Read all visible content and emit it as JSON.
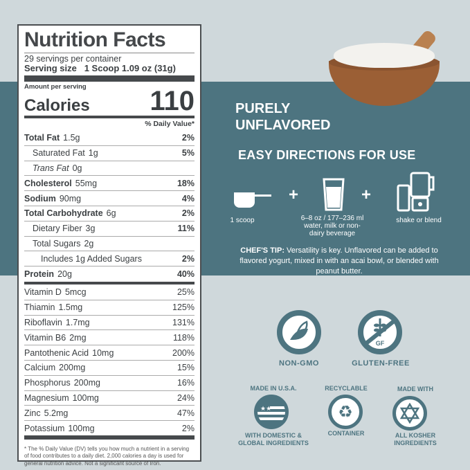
{
  "label": {
    "title": "Nutrition Facts",
    "servings": "29 servings per container",
    "serving_size_label": "Serving size",
    "serving_size_value": "1 Scoop 1.09 oz (31g)",
    "amount_per_serving": "Amount per serving",
    "calories_label": "Calories",
    "calories_value": "110",
    "dv_header": "% Daily Value*",
    "rows": [
      {
        "name": "Total Fat",
        "amount": "1.5g",
        "dv": "2%",
        "bold": true,
        "indent": 0
      },
      {
        "name": "Saturated Fat",
        "amount": "1g",
        "dv": "5%",
        "bold": false,
        "indent": 1
      },
      {
        "name": "Trans Fat",
        "amount": "0g",
        "dv": "",
        "bold": false,
        "indent": 1,
        "italic": true
      },
      {
        "name": "Cholesterol",
        "amount": "55mg",
        "dv": "18%",
        "bold": true,
        "indent": 0
      },
      {
        "name": "Sodium",
        "amount": "90mg",
        "dv": "4%",
        "bold": true,
        "indent": 0
      },
      {
        "name": "Total Carbohydrate",
        "amount": "6g",
        "dv": "2%",
        "bold": true,
        "indent": 0
      },
      {
        "name": "Dietary Fiber",
        "amount": "3g",
        "dv": "11%",
        "bold": false,
        "indent": 1
      },
      {
        "name": "Total Sugars",
        "amount": "2g",
        "dv": "",
        "bold": false,
        "indent": 1
      },
      {
        "name": "Includes 1g Added Sugars",
        "amount": "",
        "dv": "2%",
        "bold": false,
        "indent": 2
      },
      {
        "name": "Protein",
        "amount": "20g",
        "dv": "40%",
        "bold": true,
        "indent": 0
      }
    ],
    "vitamins": [
      {
        "name": "Vitamin D",
        "amount": "5mcg",
        "dv": "25%"
      },
      {
        "name": "Thiamin",
        "amount": "1.5mg",
        "dv": "125%"
      },
      {
        "name": "Riboflavin",
        "amount": "1.7mg",
        "dv": "131%"
      },
      {
        "name": "Vitamin B6",
        "amount": "2mg",
        "dv": "118%"
      },
      {
        "name": "Pantothenic Acid",
        "amount": "10mg",
        "dv": "200%"
      },
      {
        "name": "Calcium",
        "amount": "200mg",
        "dv": "15%"
      },
      {
        "name": "Phosphorus",
        "amount": "200mg",
        "dv": "16%"
      },
      {
        "name": "Magnesium",
        "amount": "100mg",
        "dv": "24%"
      },
      {
        "name": "Zinc",
        "amount": "5.2mg",
        "dv": "47%"
      },
      {
        "name": "Potassium",
        "amount": "100mg",
        "dv": "2%"
      }
    ],
    "footnote": "* The % Daily Value (DV) tells you how much a nutrient in a serving of food contributes to a daily diet. 2,000 calories a day is used for general nutrition advice.  Not a significant source of Iron."
  },
  "headline": [
    "PURELY",
    "UNFLAVORED"
  ],
  "directions_title": "EASY DIRECTIONS FOR USE",
  "steps": [
    {
      "icon": "scoop-icon",
      "text": "1 scoop"
    },
    {
      "icon": "glass-icon",
      "text": "6–8 oz / 177–236 ml water,  milk or non-dairy beverage"
    },
    {
      "icon": "blender-icon",
      "text": "shake or blend"
    }
  ],
  "plus": "+",
  "tip_label": "CHEF'S TIP:",
  "tip_text": " Versatility is key. Unflavored can be added to flavored yogurt, mixed in with an acai bowl, or blended with peanut butter.",
  "badges": {
    "non_gmo": "NON-GMO",
    "gluten_free": "GLUTEN-FREE",
    "gf": "GF",
    "usa_top": "MADE IN U.S.A.",
    "usa_bottom": "WITH DOMESTIC & GLOBAL INGREDIENTS",
    "recycle_top": "RECYCLABLE",
    "recycle_bottom": "CONTAINER",
    "kosher_top": "MADE WITH",
    "kosher_bottom": "ALL KOSHER INGREDIENTS"
  },
  "colors": {
    "teal": "#4d7480",
    "background": "#cfd8db",
    "bowl": "#a0643a"
  }
}
